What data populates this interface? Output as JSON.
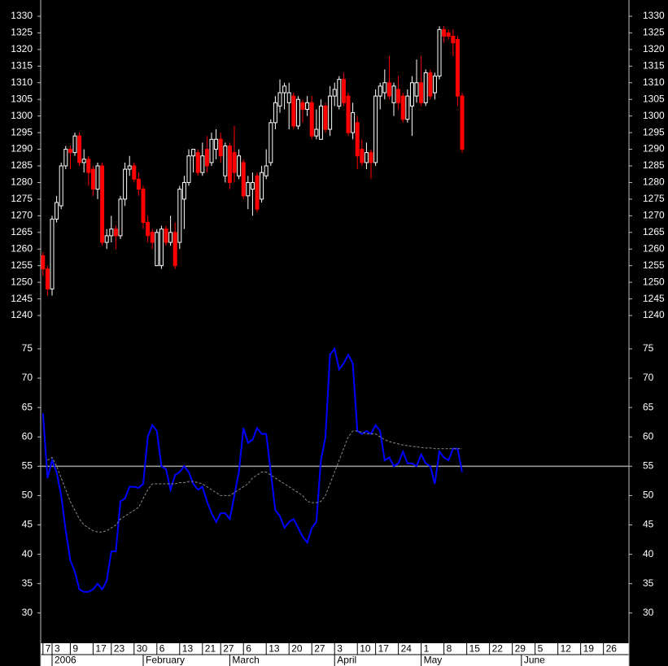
{
  "chart_data": [
    {
      "type": "candlestick",
      "xlim": [
        -0.5,
        128.6
      ],
      "ylim": [
        1236,
        1334
      ],
      "yticks": [
        1240,
        1245,
        1250,
        1255,
        1260,
        1265,
        1270,
        1275,
        1280,
        1285,
        1290,
        1295,
        1300,
        1305,
        1310,
        1315,
        1320,
        1325,
        1330
      ],
      "up_color": "#ffffff",
      "down_color": "#ff0000",
      "open": [
        1258,
        1254,
        1248,
        1269,
        1273,
        1285,
        1290,
        1289,
        1294,
        1286,
        1287,
        1284,
        1278,
        1285,
        1262,
        1264,
        1266,
        1264,
        1275,
        1284,
        1285,
        1281,
        1278,
        1268,
        1265,
        1255,
        1255,
        1266,
        1262,
        1265,
        1262,
        1275,
        1280,
        1288,
        1289,
        1283,
        1290,
        1286,
        1290,
        1293,
        1282,
        1291,
        1289,
        1282,
        1286,
        1276,
        1278,
        1282,
        1275,
        1282,
        1286,
        1298,
        1303,
        1307,
        1304,
        1306,
        1297,
        1304,
        1302,
        1304,
        1294,
        1293,
        1303,
        1296,
        1306,
        1303,
        1311,
        1306,
        1295,
        1298,
        1290,
        1286,
        1289,
        1286,
        1306,
        1307,
        1310,
        1304,
        1308,
        1306,
        1299,
        1303,
        1306,
        1310,
        1304,
        1313,
        1307,
        1312,
        1326,
        1325,
        1324,
        1323,
        1306
      ],
      "high": [
        1259,
        1255,
        1270,
        1276,
        1286,
        1291,
        1291,
        1295,
        1295,
        1290,
        1288,
        1285,
        1286,
        1286,
        1266,
        1270,
        1267,
        1276,
        1286,
        1288,
        1286,
        1283,
        1279,
        1270,
        1266,
        1266,
        1267,
        1267,
        1270,
        1268,
        1279,
        1282,
        1290,
        1290,
        1290,
        1292,
        1294,
        1295,
        1296,
        1295,
        1292,
        1292,
        1297,
        1290,
        1287,
        1282,
        1283,
        1283,
        1285,
        1290,
        1299,
        1306,
        1311,
        1310,
        1310,
        1307,
        1306,
        1305,
        1306,
        1306,
        1302,
        1305,
        1304,
        1309,
        1310,
        1312,
        1313,
        1307,
        1304,
        1300,
        1293,
        1292,
        1290,
        1308,
        1310,
        1314,
        1318,
        1310,
        1312,
        1307,
        1308,
        1312,
        1317,
        1318,
        1314,
        1314,
        1313,
        1327,
        1327,
        1326,
        1326,
        1324,
        1307
      ],
      "low": [
        1252,
        1246,
        1246,
        1268,
        1272,
        1284,
        1284,
        1288,
        1285,
        1283,
        1279,
        1276,
        1275,
        1261,
        1260,
        1262,
        1260,
        1263,
        1273,
        1282,
        1280,
        1276,
        1266,
        1262,
        1260,
        1255,
        1254,
        1261,
        1261,
        1254,
        1260,
        1266,
        1279,
        1283,
        1282,
        1282,
        1283,
        1285,
        1287,
        1286,
        1280,
        1278,
        1280,
        1281,
        1275,
        1272,
        1270,
        1271,
        1274,
        1281,
        1285,
        1296,
        1301,
        1302,
        1296,
        1296,
        1296,
        1298,
        1300,
        1293,
        1293,
        1293,
        1295,
        1294,
        1303,
        1302,
        1303,
        1294,
        1293,
        1284,
        1285,
        1284,
        1281,
        1285,
        1302,
        1305,
        1305,
        1300,
        1302,
        1298,
        1298,
        1294,
        1304,
        1303,
        1303,
        1305,
        1305,
        1311,
        1322,
        1323,
        1318,
        1303,
        1289
      ],
      "close": [
        1254,
        1248,
        1269,
        1274,
        1285,
        1290,
        1289,
        1294,
        1286,
        1287,
        1283,
        1278,
        1285,
        1262,
        1264,
        1266,
        1264,
        1275,
        1284,
        1285,
        1281,
        1278,
        1268,
        1264,
        1262,
        1265,
        1266,
        1262,
        1265,
        1255,
        1278,
        1280,
        1288,
        1290,
        1283,
        1288,
        1285,
        1293,
        1293,
        1288,
        1291,
        1280,
        1283,
        1288,
        1276,
        1280,
        1280,
        1272,
        1283,
        1285,
        1298,
        1304,
        1307,
        1309,
        1307,
        1297,
        1305,
        1302,
        1304,
        1294,
        1296,
        1303,
        1296,
        1306,
        1308,
        1311,
        1304,
        1295,
        1301,
        1288,
        1286,
        1289,
        1286,
        1306,
        1309,
        1310,
        1306,
        1309,
        1304,
        1299,
        1306,
        1310,
        1310,
        1304,
        1313,
        1306,
        1312,
        1326,
        1324,
        1324,
        1322,
        1306,
        1290
      ]
    },
    {
      "type": "line",
      "xlim": [
        -0.5,
        128.6
      ],
      "ylim": [
        25,
        77.5
      ],
      "yticks": [
        30,
        35,
        40,
        45,
        50,
        55,
        60,
        65,
        70,
        75
      ],
      "hline": 55,
      "hline_color": "#a0a0a0",
      "series": [
        {
          "color": "#0000ff",
          "values": [
            64,
            53,
            56,
            54,
            50,
            44,
            39,
            37,
            34,
            33.6,
            33.6,
            34,
            35,
            34,
            35.5,
            40.5,
            40.5,
            49,
            49.5,
            51.5,
            51.5,
            51.3,
            52,
            60,
            62,
            61,
            55,
            54.5,
            51,
            53.5,
            54,
            55,
            54,
            52,
            51,
            51.5,
            49,
            47,
            45.5,
            47,
            47,
            46,
            50,
            54,
            61.5,
            59,
            59.5,
            61.5,
            60.5,
            60.5,
            54,
            47.5,
            46.5,
            44.5,
            45.5,
            46,
            44.5,
            43,
            42,
            44.5,
            45.5,
            56,
            60,
            74,
            75,
            71.5,
            72.5,
            74,
            72.5,
            61,
            60.5,
            61,
            60.5,
            62,
            61,
            56,
            56.5,
            55,
            55.5,
            57.5,
            55.5,
            55.5,
            55,
            57,
            55.5,
            55,
            52,
            57.5,
            56.5,
            56,
            58,
            58,
            54
          ]
        },
        {
          "color": "#8a8a8a",
          "dashed": true,
          "values": [
            null,
            56,
            56.5,
            55,
            53,
            51,
            49,
            47.5,
            46,
            45,
            44.5,
            44,
            43.8,
            43.8,
            44,
            44.5,
            45,
            46,
            46.5,
            47,
            47.5,
            48,
            49.5,
            51,
            52,
            52,
            52,
            52,
            52,
            52,
            52.2,
            52.2,
            52.4,
            52.4,
            52.2,
            52,
            51.5,
            51,
            50.5,
            50,
            50,
            50,
            50.5,
            51,
            51.5,
            52,
            53,
            53.5,
            54,
            54,
            53.5,
            53,
            52.5,
            52,
            51.5,
            51,
            50.5,
            50,
            49,
            48.8,
            48.8,
            49,
            50,
            52,
            54,
            56,
            58,
            60,
            61,
            61,
            60.8,
            60.5,
            60.5,
            60.5,
            60,
            59.5,
            59.2,
            59,
            58.8,
            58.6,
            58.5,
            58.4,
            58.3,
            58.2,
            58.1,
            58.1,
            58,
            58,
            58,
            58,
            58,
            58,
            58
          ]
        }
      ],
      "xticks": [
        {
          "value": 0,
          "label": "7"
        },
        {
          "value": 2,
          "label": "3"
        },
        {
          "value": 6,
          "label": "9"
        },
        {
          "value": 11,
          "label": "17"
        },
        {
          "value": 15,
          "label": "23"
        },
        {
          "value": 20,
          "label": "30"
        },
        {
          "value": 25,
          "label": "6"
        },
        {
          "value": 30,
          "label": "13"
        },
        {
          "value": 35,
          "label": "21"
        },
        {
          "value": 39,
          "label": "27"
        },
        {
          "value": 44,
          "label": "6"
        },
        {
          "value": 49,
          "label": "13"
        },
        {
          "value": 54,
          "label": "20"
        },
        {
          "value": 59,
          "label": "27"
        },
        {
          "value": 64,
          "label": "3"
        },
        {
          "value": 69,
          "label": "10"
        },
        {
          "value": 73,
          "label": "17"
        },
        {
          "value": 78,
          "label": "24"
        },
        {
          "value": 83,
          "label": "1"
        },
        {
          "value": 88,
          "label": "8"
        },
        {
          "value": 93,
          "label": "15"
        },
        {
          "value": 98,
          "label": "22"
        },
        {
          "value": 103,
          "label": "29"
        },
        {
          "value": 108,
          "label": "5"
        },
        {
          "value": 113,
          "label": "12"
        },
        {
          "value": 118,
          "label": "19"
        },
        {
          "value": 123,
          "label": "26"
        }
      ],
      "month_ticks": [
        {
          "value": 2,
          "label": "2006"
        },
        {
          "value": 22,
          "label": "February"
        },
        {
          "value": 41,
          "label": "March"
        },
        {
          "value": 64,
          "label": "April"
        },
        {
          "value": 83,
          "label": "May"
        },
        {
          "value": 105,
          "label": "June"
        }
      ]
    }
  ]
}
